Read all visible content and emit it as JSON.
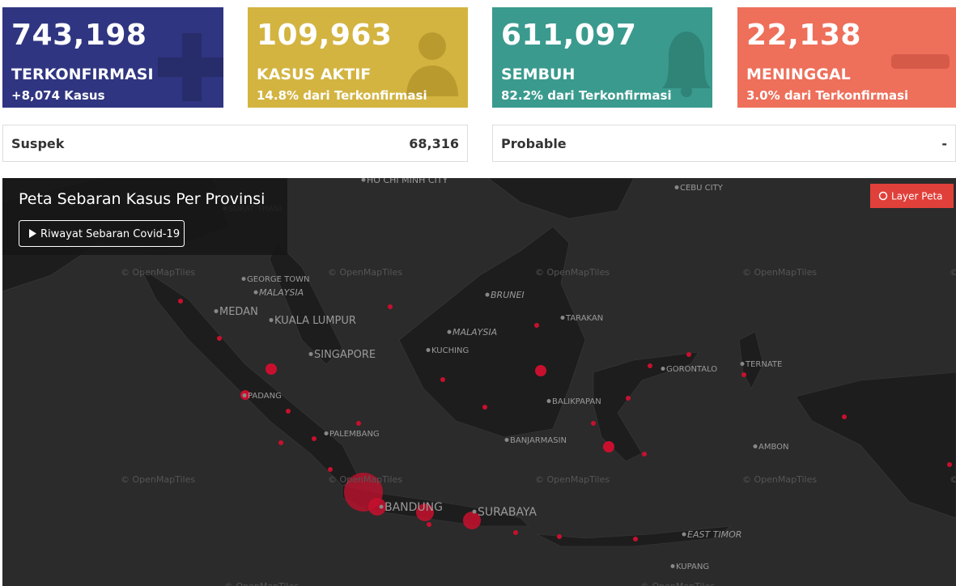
{
  "cards": [
    {
      "value": "743,198",
      "label": "TERKONFIRMASI",
      "sub": "+8,074 Kasus"
    },
    {
      "value": "109,963",
      "label": "KASUS AKTIF",
      "sub": "14.8% dari Terkonfirmasi"
    },
    {
      "value": "611,097",
      "label": "SEMBUH",
      "sub": "82.2% dari Terkonfirmasi"
    },
    {
      "value": "22,138",
      "label": "MENINGGAL",
      "sub": "3.0% dari Terkonfirmasi"
    }
  ],
  "summary": [
    {
      "label": "Suspek",
      "value": "68,316"
    },
    {
      "label": "Probable",
      "value": "-"
    }
  ],
  "map": {
    "title": "Peta Sebaran Kasus Per Provinsi",
    "button": "Riwayat Sebaran Covid-19",
    "layer_button": "Layer Peta",
    "watermark": "© OpenMapTiles",
    "places": [
      "HO CHI MINH CITY",
      "CEBU CITY",
      "SURAT THANI",
      "GEORGE TOWN",
      "MALAYSIA",
      "MEDAN",
      "KUALA LUMPUR",
      "SINGAPORE",
      "BRUNEI",
      "MALAYSIA",
      "KUCHING",
      "TARAKAN",
      "GORONTALO",
      "TERNATE",
      "PADANG",
      "BALIKPAPAN",
      "PALEMBANG",
      "BANJARMASIN",
      "AMBON",
      "BANDUNG",
      "SURABAYA",
      "EAST TIMOR",
      "KUPANG"
    ]
  }
}
